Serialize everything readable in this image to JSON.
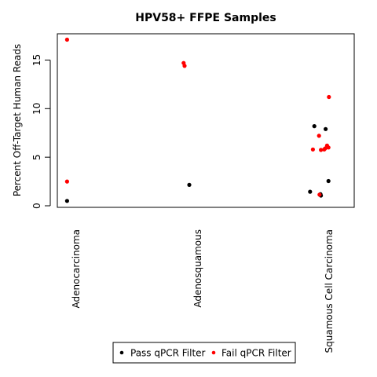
{
  "chart_data": {
    "type": "scatter",
    "title": "HPV58+ FFPE Samples",
    "xlabel": "",
    "ylabel": "Percent Off-Target Human Reads",
    "categories": [
      "Adenocarcinoma",
      "Adenosquamous",
      "Squamous Cell Carcinoma"
    ],
    "yticks": [
      0,
      5,
      10,
      15
    ],
    "ylim": [
      0,
      17.7
    ],
    "legend_position": "bottom",
    "series": [
      {
        "name": "Pass qPCR Filter",
        "color": "#000000",
        "points": [
          {
            "category": "Adenocarcinoma",
            "jitter": -0.01,
            "y": 0.5
          },
          {
            "category": "Adenosquamous",
            "jitter": 0.0,
            "y": 2.15
          },
          {
            "category": "Squamous Cell Carcinoma",
            "jitter": -0.22,
            "y": 1.45
          },
          {
            "category": "Squamous Cell Carcinoma",
            "jitter": -0.13,
            "y": 8.2
          },
          {
            "category": "Squamous Cell Carcinoma",
            "jitter": 0.0,
            "y": 1.2
          },
          {
            "category": "Squamous Cell Carcinoma",
            "jitter": 0.01,
            "y": 1.05
          },
          {
            "category": "Squamous Cell Carcinoma",
            "jitter": 0.11,
            "y": 7.9
          },
          {
            "category": "Squamous Cell Carcinoma",
            "jitter": 0.17,
            "y": 2.55
          }
        ]
      },
      {
        "name": "Fail qPCR Filter",
        "color": "#ff0000",
        "points": [
          {
            "category": "Adenocarcinoma",
            "jitter": -0.01,
            "y": 17.1
          },
          {
            "category": "Adenocarcinoma",
            "jitter": -0.01,
            "y": 2.5
          },
          {
            "category": "Adenosquamous",
            "jitter": -0.12,
            "y": 14.7
          },
          {
            "category": "Adenosquamous",
            "jitter": -0.1,
            "y": 14.4
          },
          {
            "category": "Squamous Cell Carcinoma",
            "jitter": -0.16,
            "y": 5.8
          },
          {
            "category": "Squamous Cell Carcinoma",
            "jitter": -0.03,
            "y": 7.2
          },
          {
            "category": "Squamous Cell Carcinoma",
            "jitter": -0.02,
            "y": 1.15
          },
          {
            "category": "Squamous Cell Carcinoma",
            "jitter": 0.01,
            "y": 5.75
          },
          {
            "category": "Squamous Cell Carcinoma",
            "jitter": 0.08,
            "y": 5.8
          },
          {
            "category": "Squamous Cell Carcinoma",
            "jitter": 0.1,
            "y": 5.9
          },
          {
            "category": "Squamous Cell Carcinoma",
            "jitter": 0.14,
            "y": 6.2
          },
          {
            "category": "Squamous Cell Carcinoma",
            "jitter": 0.17,
            "y": 6.0
          },
          {
            "category": "Squamous Cell Carcinoma",
            "jitter": 0.18,
            "y": 11.2
          }
        ]
      }
    ]
  }
}
